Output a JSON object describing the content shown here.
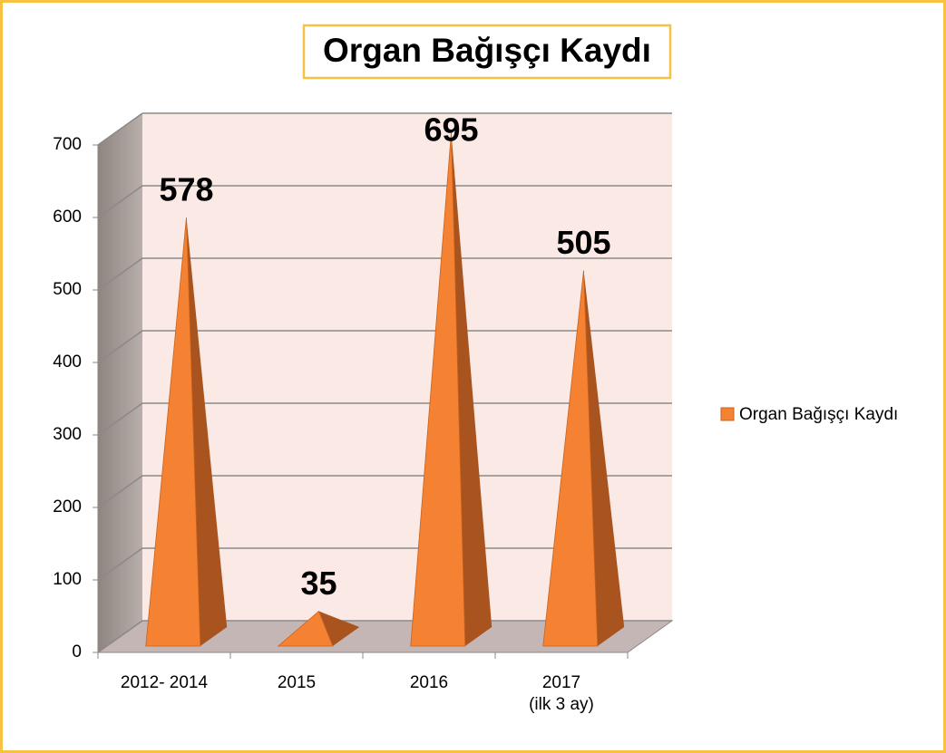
{
  "chart_data": {
    "type": "bar3d-pyramid",
    "title": "Organ Bağışçı Kaydı",
    "categories": [
      "2012- 2014",
      "2015",
      "2016",
      "2017\n(ilk 3 ay)"
    ],
    "series": [
      {
        "name": "Organ Bağışçı Kaydı",
        "color": "#f58232",
        "values": [
          578,
          35,
          695,
          505
        ]
      }
    ],
    "ylim": [
      0,
      700
    ],
    "yticks": [
      0,
      100,
      200,
      300,
      400,
      500,
      600,
      700
    ],
    "grid": true,
    "legend": "right"
  }
}
